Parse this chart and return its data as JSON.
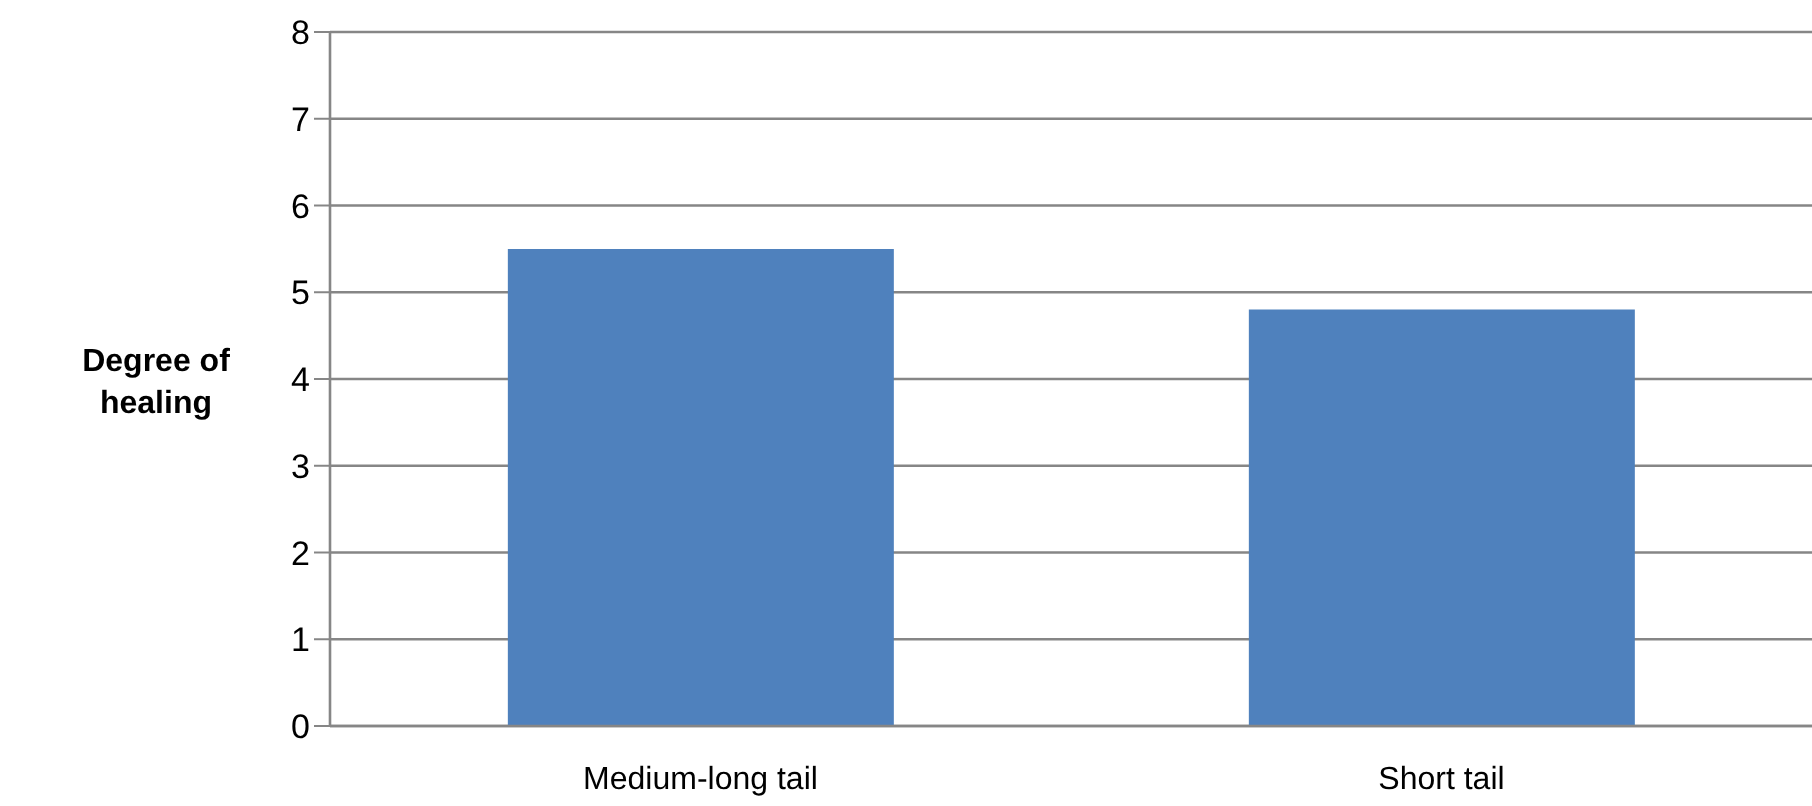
{
  "chart_data": {
    "type": "bar",
    "ylabel": "Degree of healing",
    "categories": [
      "Medium-long tail",
      "Short tail"
    ],
    "values": [
      5.5,
      4.8
    ],
    "color": "#4f81bd",
    "ylim": [
      0,
      8
    ],
    "yticks": [
      0,
      1,
      2,
      3,
      4,
      5,
      6,
      7,
      8
    ],
    "grid": "y"
  }
}
